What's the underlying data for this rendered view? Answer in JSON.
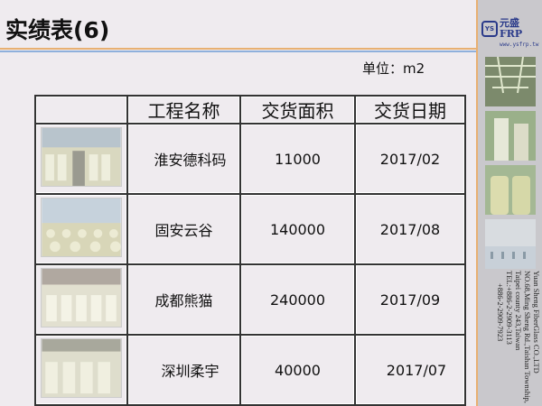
{
  "title": "实绩表(6)",
  "unit": "单位：m2",
  "table": {
    "headers": [
      "",
      "工程名称",
      "交货面积",
      "交货日期"
    ],
    "rows": [
      {
        "name": "淮安德科码",
        "area": "11000",
        "date": "2017/02"
      },
      {
        "name": "固安云谷",
        "area": "140000",
        "date": "2017/08"
      },
      {
        "name": "成都熊猫",
        "area": "240000",
        "date": "2017/09"
      },
      {
        "name": "深圳柔宇",
        "area": "40000",
        "date": "2017/07"
      }
    ]
  },
  "sidebar": {
    "logo_mark": "YS",
    "logo_name": "元盛FRP",
    "logo_url": "www.ysfrp.tw",
    "address": [
      "Yuan Sheng FiberGlass CO.,LTD",
      "NO.68,Ming Sheng Rd.,Taishan Township,",
      "Taipei county 243,Taiwan",
      "TEL:+886-2-2909-3113",
      "+886-2-2909-7923"
    ]
  },
  "colors": {
    "accent_orange": "#e8b072",
    "accent_blue": "#8fb0dc",
    "brand": "#2a3a8a"
  }
}
